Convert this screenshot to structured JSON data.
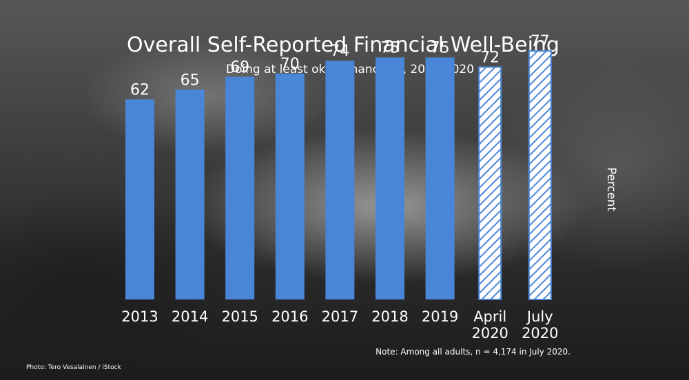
{
  "chart_data": {
    "type": "bar",
    "title": "Overall Self-Reported Financial Well-Being",
    "subtitle": "Doing at least okay financially, 2013-2020",
    "ylabel": "Percent",
    "categories": [
      [
        "2013"
      ],
      [
        "2014"
      ],
      [
        "2015"
      ],
      [
        "2016"
      ],
      [
        "2017"
      ],
      [
        "2018"
      ],
      [
        "2019"
      ],
      [
        "April",
        "2020"
      ],
      [
        "July",
        "2020"
      ]
    ],
    "values": [
      62,
      65,
      69,
      70,
      74,
      75,
      75,
      72,
      77
    ],
    "hatched": [
      false,
      false,
      false,
      false,
      false,
      false,
      false,
      true,
      true
    ],
    "ylim": [
      0,
      80
    ],
    "grid": false,
    "legend": "none",
    "colors": {
      "bar": "#4a86d8",
      "hatch_line": "#4a86d8",
      "hatch_fill": "#ffffff",
      "text": "#ffffff"
    }
  },
  "note": "Note: Among all adults, n = 4,174 in July 2020.",
  "photo_credit": "Photo: Tero Vesalainen / iStock"
}
